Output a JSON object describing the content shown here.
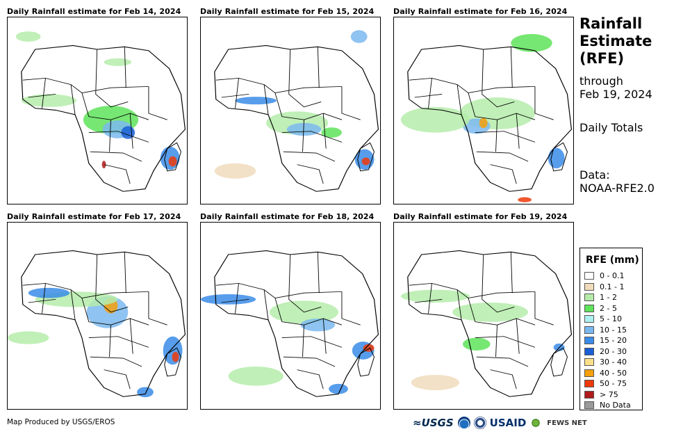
{
  "panels": [
    {
      "title": "Daily Rainfall estimate for Feb 14, 2024"
    },
    {
      "title": "Daily Rainfall estimate for Feb 15, 2024"
    },
    {
      "title": "Daily Rainfall estimate for Feb 16, 2024"
    },
    {
      "title": "Daily Rainfall estimate for Feb 17, 2024"
    },
    {
      "title": "Daily Rainfall estimate for Feb 18, 2024"
    },
    {
      "title": "Daily Rainfall estimate for Feb 19, 2024"
    }
  ],
  "sidebar": {
    "title_line1": "Rainfall",
    "title_line2": "Estimate",
    "title_line3": "(RFE)",
    "through_label": "through",
    "through_date": "Feb 19, 2024",
    "totals_label": "Daily Totals",
    "data_label": "Data:",
    "data_source": "NOAA-RFE2.0"
  },
  "legend": {
    "title": "RFE (mm)",
    "items": [
      {
        "label": "0 - 0.1",
        "color": "#ffffff"
      },
      {
        "label": "0.1 - 1",
        "color": "#f0dcbc"
      },
      {
        "label": "1 - 2",
        "color": "#b5ecaa"
      },
      {
        "label": "2 - 5",
        "color": "#5fe35a"
      },
      {
        "label": "5 - 10",
        "color": "#aef0f0"
      },
      {
        "label": "10 - 15",
        "color": "#7bb8f0"
      },
      {
        "label": "15 - 20",
        "color": "#3a8ce8"
      },
      {
        "label": "20 - 30",
        "color": "#1a5fd6"
      },
      {
        "label": "30 - 40",
        "color": "#fbe08a"
      },
      {
        "label": "40 - 50",
        "color": "#f5a00c"
      },
      {
        "label": "50 - 75",
        "color": "#ee3a0a"
      },
      {
        "label": "> 75",
        "color": "#b01c1c"
      },
      {
        "label": "No Data",
        "color": "#9a9a9a"
      }
    ]
  },
  "footer": {
    "credit": "Map Produced by USGS/EROS"
  },
  "logos": {
    "usgs": "≈USGS",
    "usaid": "USAID",
    "fews": "FEWS NET"
  }
}
